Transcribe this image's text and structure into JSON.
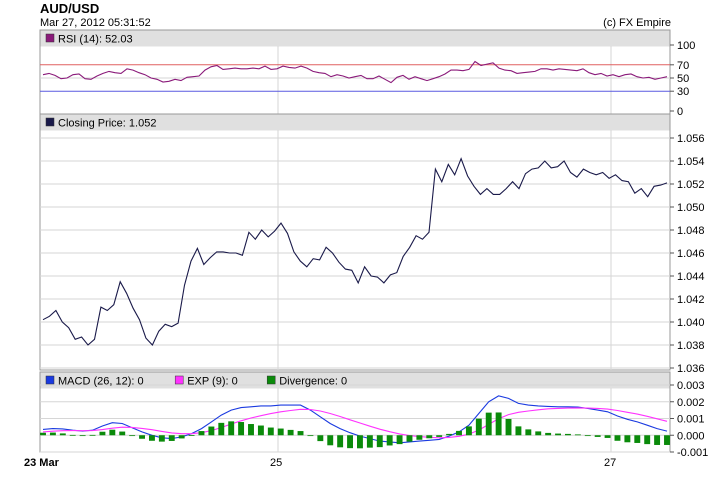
{
  "header": {
    "title": "AUD/USD",
    "timestamp": "Mar 27, 2012 05:31:52",
    "copyright": "(c) FX Empire"
  },
  "colors": {
    "background": "#ffffff",
    "panel_header": "#e0e0e0",
    "grid": "#d6d6d6",
    "rsi_line": "#8a1a7a",
    "rsi_upper_band": "#e06060",
    "rsi_lower_band": "#5a5ae0",
    "price_line": "#1a1a4a",
    "macd_line": "#1a3ae0",
    "exp_line": "#ff33ff",
    "divergence": "#0a8a0a"
  },
  "chart_data": [
    {
      "type": "line",
      "panel": "rsi",
      "legend": [
        {
          "label": "RSI (14): 52.03",
          "color": "#8a1a7a"
        }
      ],
      "ylim": [
        0,
        100
      ],
      "yticks": [
        "100",
        "70",
        "50",
        "30",
        "0"
      ],
      "reference_lines": [
        {
          "value": 70,
          "color": "#e06060"
        },
        {
          "value": 30,
          "color": "#5a5ae0"
        }
      ],
      "series": [
        {
          "values": [
            55,
            57,
            54,
            49,
            50,
            55,
            56,
            49,
            48,
            53,
            57,
            60,
            58,
            57,
            64,
            62,
            58,
            55,
            50,
            48,
            44,
            45,
            48,
            46,
            51,
            52,
            53,
            62,
            67,
            69,
            63,
            64,
            65,
            64,
            64,
            65,
            64,
            68,
            63,
            64,
            68,
            66,
            65,
            68,
            65,
            60,
            58,
            57,
            52,
            55,
            53,
            50,
            52,
            54,
            49,
            49,
            53,
            48,
            43,
            51,
            54,
            48,
            52,
            49,
            46,
            49,
            52,
            56,
            62,
            62,
            61,
            63,
            75,
            69,
            71,
            73,
            65,
            62,
            61,
            57,
            58,
            59,
            60,
            64,
            64,
            62,
            64,
            63,
            62,
            61,
            64,
            58,
            55,
            57,
            53,
            55,
            52,
            55,
            56,
            52,
            50,
            51,
            48,
            50,
            52
          ]
        }
      ],
      "grid": true
    },
    {
      "type": "line",
      "panel": "price",
      "legend": [
        {
          "label": "Closing Price: 1.052",
          "color": "#1a1a4a"
        }
      ],
      "ylim": [
        1.036,
        1.056
      ],
      "yticks": [
        "1.056",
        "1.054",
        "1.052",
        "1.050",
        "1.048",
        "1.046",
        "1.044",
        "1.042",
        "1.040",
        "1.038",
        "1.036"
      ],
      "series": [
        {
          "values": [
            1.0402,
            1.0405,
            1.041,
            1.04,
            1.0395,
            1.0385,
            1.0387,
            1.038,
            1.0385,
            1.0413,
            1.041,
            1.0415,
            1.0435,
            1.0425,
            1.0412,
            1.0402,
            1.0386,
            1.038,
            1.0392,
            1.0398,
            1.0396,
            1.0399,
            1.0432,
            1.0453,
            1.0464,
            1.045,
            1.0456,
            1.0461,
            1.0461,
            1.046,
            1.046,
            1.0458,
            1.0478,
            1.0472,
            1.048,
            1.0474,
            1.0479,
            1.0486,
            1.0477,
            1.0461,
            1.0453,
            1.0448,
            1.0455,
            1.0454,
            1.0465,
            1.046,
            1.0452,
            1.0446,
            1.0445,
            1.0434,
            1.0448,
            1.044,
            1.0439,
            1.0434,
            1.0441,
            1.0443,
            1.0457,
            1.0465,
            1.0475,
            1.0472,
            1.0478,
            1.0533,
            1.0522,
            1.0537,
            1.0528,
            1.0542,
            1.0527,
            1.0518,
            1.0511,
            1.0516,
            1.0511,
            1.0511,
            1.0516,
            1.0522,
            1.0516,
            1.0529,
            1.0533,
            1.0534,
            1.054,
            1.0534,
            1.0535,
            1.054,
            1.053,
            1.0526,
            1.0533,
            1.053,
            1.0528,
            1.053,
            1.0525,
            1.0528,
            1.0523,
            1.0522,
            1.0512,
            1.0516,
            1.0509,
            1.0518,
            1.0519,
            1.0521
          ]
        }
      ],
      "grid": true
    },
    {
      "type": "line",
      "panel": "macd",
      "legend": [
        {
          "label": "MACD (26, 12): 0",
          "color": "#1a3ae0"
        },
        {
          "label": "EXP (9): 0",
          "color": "#ff33ff"
        },
        {
          "label": "Divergence: 0",
          "color": "#0a8a0a"
        }
      ],
      "ylim": [
        -0.001,
        0.003
      ],
      "yticks": [
        "0.003",
        "0.002",
        "0.001",
        "0.000",
        "-0.001"
      ],
      "x_tick_labels": [
        "23 Mar",
        "25",
        "27"
      ],
      "series": [
        {
          "name": "MACD (26, 12)",
          "type": "line",
          "values": [
            0.00035,
            0.0004,
            0.00038,
            0.0003,
            0.00025,
            0.0003,
            0.00055,
            0.00075,
            0.0007,
            0.00045,
            0.0002,
            0.0,
            -0.00015,
            -0.0002,
            -0.0001,
            0.0001,
            0.0004,
            0.0008,
            0.0012,
            0.0015,
            0.00165,
            0.0017,
            0.00175,
            0.00175,
            0.0018,
            0.0018,
            0.0018,
            0.0015,
            0.0011,
            0.0007,
            0.0004,
            0.00015,
            -5e-05,
            -0.0002,
            -0.00035,
            -0.0004,
            -0.00045,
            -0.0004,
            -0.00035,
            -0.0003,
            -0.00025,
            -5e-05,
            0.0002,
            0.0006,
            0.0013,
            0.002,
            0.00235,
            0.0022,
            0.0019,
            0.0018,
            0.00175,
            0.00172,
            0.0017,
            0.0017,
            0.00168,
            0.0016,
            0.0015,
            0.0014,
            0.00115,
            0.00095,
            0.0008,
            0.0006,
            0.0004,
            0.00025
          ]
        },
        {
          "name": "EXP (9)",
          "type": "line",
          "values": [
            0.0002,
            0.00024,
            0.00027,
            0.00028,
            0.00027,
            0.00028,
            0.00034,
            0.00042,
            0.00048,
            0.00047,
            0.00041,
            0.00033,
            0.00023,
            0.00014,
            9e-05,
            9e-05,
            0.00015,
            0.00028,
            0.00046,
            0.00067,
            0.00086,
            0.00103,
            0.00117,
            0.00129,
            0.0014,
            0.00148,
            0.00155,
            0.00154,
            0.00145,
            0.0013,
            0.00112,
            0.00092,
            0.00073,
            0.00054,
            0.00036,
            0.00021,
            8e-05,
            -2e-05,
            -8e-05,
            -0.00012,
            -0.00015,
            -0.00013,
            -6e-05,
            7e-05,
            0.00031,
            0.00065,
            0.00099,
            0.00123,
            0.00137,
            0.00145,
            0.00152,
            0.00158,
            0.0016,
            0.00162,
            0.00163,
            0.00162,
            0.0016,
            0.00156,
            0.00148,
            0.00137,
            0.00126,
            0.00113,
            0.00098,
            0.00083
          ]
        },
        {
          "name": "Divergence",
          "type": "bar",
          "values": [
            0.00015,
            0.00016,
            0.00011,
            2e-05,
            -2e-05,
            2e-05,
            0.00021,
            0.00033,
            0.00022,
            -2e-05,
            -0.00021,
            -0.00033,
            -0.00038,
            -0.00034,
            -0.00019,
            1e-05,
            0.00025,
            0.00052,
            0.00074,
            0.00083,
            0.00079,
            0.00067,
            0.00058,
            0.00046,
            0.0004,
            0.00032,
            0.00025,
            -4e-05,
            -0.00035,
            -0.0006,
            -0.00072,
            -0.00077,
            -0.00078,
            -0.00074,
            -0.00071,
            -0.00061,
            -0.00053,
            -0.00038,
            -0.00027,
            -0.00018,
            -0.0001,
            8e-05,
            0.00026,
            0.00053,
            0.00099,
            0.00135,
            0.00136,
            0.00097,
            0.00053,
            0.00035,
            0.00023,
            0.00014,
            0.0001,
            8e-05,
            5e-05,
            -2e-05,
            -0.0001,
            -0.00016,
            -0.00033,
            -0.00042,
            -0.00046,
            -0.00053,
            -0.00058,
            -0.00058
          ]
        }
      ],
      "grid": true
    }
  ]
}
